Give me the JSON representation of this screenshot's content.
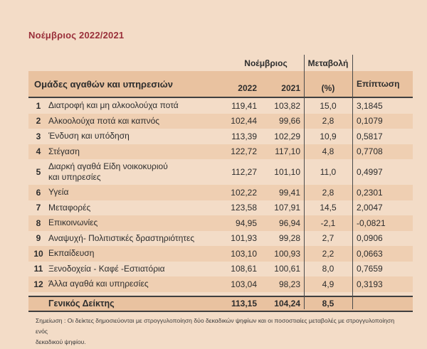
{
  "page": {
    "title": "Νοέμβριος 2022/2021",
    "note_line1": "Σημείωση :  Οι δείκτες δημοσιεύονται με στρογγυλοποίηση δύο δεκαδικών ψηφίων και οι ποσοστιαίες μεταβολές με στρογγυλοποίηση ενός",
    "note_line2": "δεκαδικού ψηφίου."
  },
  "colors": {
    "background": "#f3dcc7",
    "header_band": "#e9c2a0",
    "row_alt": "#efcfb2",
    "total_row": "#e9c2a0",
    "title_text": "#9a2f3a",
    "rule_line": "#3f3f3f"
  },
  "table": {
    "headers": {
      "group_label": "Ομάδες αγαθών και υπηρεσιών",
      "november": "Νοέμβριος",
      "change": "Μεταβολή",
      "year_2022": "2022",
      "year_2021": "2021",
      "percent": "(%)",
      "impact": "Επίπτωση"
    },
    "rows": [
      {
        "num": "1",
        "label": "Διατροφή και μη αλκοολούχα ποτά",
        "v2022": "119,41",
        "v2021": "103,82",
        "change": "15,0",
        "impact": "3,1845"
      },
      {
        "num": "2",
        "label": "Αλκοολούχα ποτά και καπνός",
        "v2022": "102,44",
        "v2021": "99,66",
        "change": "2,8",
        "impact": "0,1079"
      },
      {
        "num": "3",
        "label": "Ένδυση και υπόδηση",
        "v2022": "113,39",
        "v2021": "102,29",
        "change": "10,9",
        "impact": "0,5817"
      },
      {
        "num": "4",
        "label": "Στέγαση",
        "v2022": "122,72",
        "v2021": "117,10",
        "change": "4,8",
        "impact": "0,7708"
      },
      {
        "num": "5",
        "label": "Διαρκή αγαθά Είδη νοικοκυριού\nκαι υπηρεσίες",
        "v2022": "112,27",
        "v2021": "101,10",
        "change": "11,0",
        "impact": "0,4997"
      },
      {
        "num": "6",
        "label": "Υγεία",
        "v2022": "102,22",
        "v2021": "99,41",
        "change": "2,8",
        "impact": "0,2301"
      },
      {
        "num": "7",
        "label": "Μεταφορές",
        "v2022": "123,58",
        "v2021": "107,91",
        "change": "14,5",
        "impact": "2,0047"
      },
      {
        "num": "8",
        "label": "Επικοινωνίες",
        "v2022": "94,95",
        "v2021": "96,94",
        "change": "-2,1",
        "impact": "-0,0821"
      },
      {
        "num": "9",
        "label": "Αναψυχή- Πολιτιστικές δραστηριότητες",
        "v2022": "101,93",
        "v2021": "99,28",
        "change": "2,7",
        "impact": "0,0906"
      },
      {
        "num": "10",
        "label": "Εκπαίδευση",
        "v2022": "103,10",
        "v2021": "100,93",
        "change": "2,2",
        "impact": "0,0663"
      },
      {
        "num": "11",
        "label": "Ξενοδοχεία - Καφέ  -Εστιατόρια",
        "v2022": "108,61",
        "v2021": "100,61",
        "change": "8,0",
        "impact": "0,7659"
      },
      {
        "num": "12",
        "label": "Άλλα αγαθά και υπηρεσίες",
        "v2022": "103,04",
        "v2021": "98,23",
        "change": "4,9",
        "impact": "0,3193"
      }
    ],
    "total": {
      "label": "Γενικός Δείκτης",
      "v2022": "113,15",
      "v2021": "104,24",
      "change": "8,5",
      "impact": ""
    }
  }
}
